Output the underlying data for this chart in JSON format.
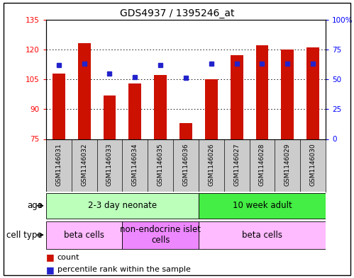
{
  "title": "GDS4937 / 1395246_at",
  "samples": [
    "GSM1146031",
    "GSM1146032",
    "GSM1146033",
    "GSM1146034",
    "GSM1146035",
    "GSM1146036",
    "GSM1146026",
    "GSM1146027",
    "GSM1146028",
    "GSM1146029",
    "GSM1146030"
  ],
  "counts": [
    108,
    123,
    97,
    103,
    107,
    83,
    105,
    117,
    122,
    120,
    121
  ],
  "percentiles": [
    62,
    63,
    55,
    52,
    62,
    51,
    63,
    63,
    63,
    63,
    63
  ],
  "ylim_left": [
    75,
    135
  ],
  "ylim_right": [
    0,
    100
  ],
  "yticks_left": [
    75,
    90,
    105,
    120,
    135
  ],
  "yticks_right": [
    0,
    25,
    50,
    75,
    100
  ],
  "ytick_labels_left": [
    "75",
    "90",
    "105",
    "120",
    "135"
  ],
  "ytick_labels_right": [
    "0",
    "25",
    "50",
    "75",
    "100%"
  ],
  "bar_color": "#cc1100",
  "dot_color": "#2222cc",
  "age_groups": [
    {
      "label": "2-3 day neonate",
      "start": 0,
      "end": 6,
      "color": "#bbffbb"
    },
    {
      "label": "10 week adult",
      "start": 6,
      "end": 11,
      "color": "#44ee44"
    }
  ],
  "cell_type_groups": [
    {
      "label": "beta cells",
      "start": 0,
      "end": 3,
      "color": "#ffbbff"
    },
    {
      "label": "non-endocrine islet\ncells",
      "start": 3,
      "end": 6,
      "color": "#ee88ff"
    },
    {
      "label": "beta cells",
      "start": 6,
      "end": 11,
      "color": "#ffbbff"
    }
  ],
  "label_age": "age",
  "label_cell": "cell type",
  "legend_count": "count",
  "legend_pct": "percentile rank within the sample",
  "title_fontsize": 10,
  "tick_fontsize": 7.5,
  "label_fontsize": 8.5,
  "annot_fontsize": 8.5,
  "sample_fontsize": 6.5
}
